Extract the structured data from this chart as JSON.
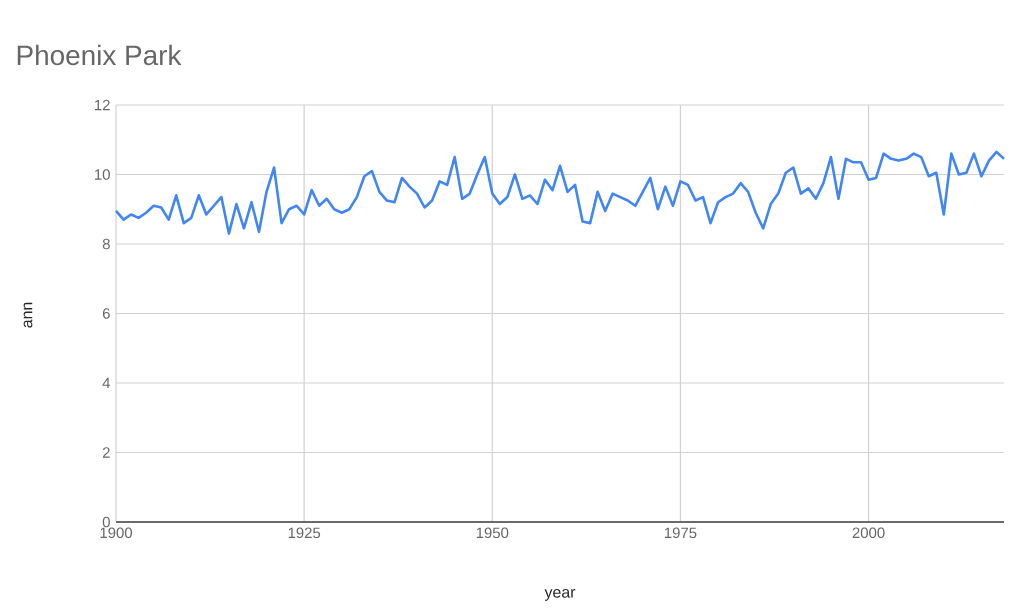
{
  "chart_data": {
    "type": "line",
    "title": "Phoenix Park",
    "xlabel": "year",
    "ylabel": "ann",
    "x": [
      1900,
      1901,
      1902,
      1903,
      1904,
      1905,
      1906,
      1907,
      1908,
      1909,
      1910,
      1911,
      1912,
      1913,
      1914,
      1915,
      1916,
      1917,
      1918,
      1919,
      1920,
      1921,
      1922,
      1923,
      1924,
      1925,
      1926,
      1927,
      1928,
      1929,
      1930,
      1931,
      1932,
      1933,
      1934,
      1935,
      1936,
      1937,
      1938,
      1939,
      1940,
      1941,
      1942,
      1943,
      1944,
      1945,
      1946,
      1947,
      1948,
      1949,
      1950,
      1951,
      1952,
      1953,
      1954,
      1955,
      1956,
      1957,
      1958,
      1959,
      1960,
      1961,
      1962,
      1963,
      1964,
      1965,
      1966,
      1967,
      1968,
      1969,
      1970,
      1971,
      1972,
      1973,
      1974,
      1975,
      1976,
      1977,
      1978,
      1979,
      1980,
      1981,
      1982,
      1983,
      1984,
      1985,
      1986,
      1987,
      1988,
      1989,
      1990,
      1991,
      1992,
      1993,
      1994,
      1995,
      1996,
      1997,
      1998,
      1999,
      2000,
      2001,
      2002,
      2003,
      2004,
      2005,
      2006,
      2007,
      2008,
      2009,
      2010,
      2011,
      2012,
      2013,
      2014,
      2015,
      2016,
      2017,
      2018
    ],
    "series": [
      {
        "color": "#4285f4",
        "values": [
          8.95,
          8.7,
          8.85,
          8.75,
          8.9,
          9.1,
          9.05,
          8.7,
          9.4,
          8.6,
          8.75,
          9.4,
          8.85,
          9.1,
          9.35,
          8.3,
          9.15,
          8.45,
          9.2,
          8.35,
          9.5,
          10.2,
          8.6,
          9.0,
          9.1,
          8.85,
          9.55,
          9.1,
          9.3,
          9.0,
          8.9,
          9.0,
          9.35,
          9.95,
          10.1,
          9.5,
          9.25,
          9.2,
          9.9,
          9.65,
          9.45,
          9.05,
          9.25,
          9.8,
          9.7,
          10.5,
          9.3,
          9.45,
          10.0,
          10.5,
          9.45,
          9.15,
          9.35,
          10.0,
          9.3,
          9.4,
          9.15,
          9.85,
          9.55,
          10.25,
          9.5,
          9.7,
          8.65,
          8.6,
          9.5,
          8.95,
          9.45,
          9.35,
          9.25,
          9.1,
          9.5,
          9.9,
          9.0,
          9.65,
          9.1,
          9.8,
          9.7,
          9.25,
          9.35,
          8.6,
          9.2,
          9.35,
          9.45,
          9.75,
          9.5,
          8.9,
          8.45,
          9.15,
          9.45,
          10.05,
          10.2,
          9.45,
          9.6,
          9.3,
          9.75,
          10.5,
          9.3,
          10.45,
          10.35,
          10.35,
          9.85,
          9.9,
          10.6,
          10.45,
          10.4,
          10.45,
          10.6,
          10.5,
          9.95,
          10.05,
          8.85,
          10.6,
          10.0,
          10.05,
          10.6,
          9.95,
          10.4,
          10.65,
          10.45
        ]
      }
    ],
    "xlim": [
      1900,
      2018
    ],
    "xticks": [
      1900,
      1925,
      1950,
      1975,
      2000
    ],
    "ylim": [
      0,
      12
    ],
    "yticks": [
      0,
      2,
      4,
      6,
      8,
      10,
      12
    ],
    "grid": true,
    "marker": "none",
    "line_style": "solid"
  }
}
